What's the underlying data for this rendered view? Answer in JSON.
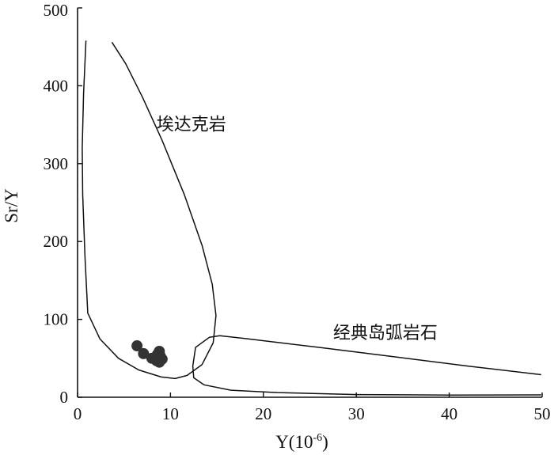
{
  "chart_data": {
    "type": "scatter",
    "title": "",
    "xlabel_main": "Y(10",
    "xlabel_exp": "-6",
    "xlabel_close": ")",
    "ylabel": "Sr/Y",
    "xlim": [
      0,
      50
    ],
    "ylim": [
      0,
      500
    ],
    "xticks": [
      "0",
      "10",
      "20",
      "30",
      "40",
      "50"
    ],
    "yticks": [
      "0",
      "100",
      "200",
      "300",
      "400",
      "500"
    ],
    "grid": false,
    "point_color": "#333333",
    "regions": [
      {
        "label": "埃达克岩",
        "label_anchor": [
          8.5,
          343
        ],
        "outline": [
          [
            0.9,
            458
          ],
          [
            0.65,
            390
          ],
          [
            0.5,
            320
          ],
          [
            0.55,
            260
          ],
          [
            0.8,
            180
          ],
          [
            1.1,
            108
          ],
          [
            2.4,
            75
          ],
          [
            4.4,
            50
          ],
          [
            6.6,
            35
          ],
          [
            9.0,
            26
          ],
          [
            10.5,
            24
          ],
          [
            11.8,
            28
          ],
          [
            13.4,
            42
          ],
          [
            14.6,
            70
          ],
          [
            14.9,
            105
          ],
          [
            14.5,
            145
          ],
          [
            13.4,
            195
          ],
          [
            11.5,
            260
          ],
          [
            9.1,
            330
          ],
          [
            7.0,
            385
          ],
          [
            5.2,
            428
          ],
          [
            3.7,
            456
          ]
        ]
      },
      {
        "label": "经典岛弧岩石",
        "label_anchor": [
          27.5,
          75
        ],
        "outline": [
          [
            49.9,
            29
          ],
          [
            42,
            40
          ],
          [
            34,
            52
          ],
          [
            26,
            64
          ],
          [
            18,
            75.5
          ],
          [
            15.3,
            79
          ],
          [
            14.2,
            77
          ],
          [
            12.7,
            64
          ],
          [
            12.4,
            40
          ],
          [
            12.5,
            25
          ],
          [
            13.6,
            16
          ],
          [
            16.5,
            9
          ],
          [
            21.5,
            6
          ],
          [
            30,
            3.5
          ],
          [
            40,
            2.8
          ],
          [
            49.9,
            3
          ]
        ]
      }
    ],
    "points": [
      {
        "x": 6.4,
        "y": 66
      },
      {
        "x": 7.1,
        "y": 56
      },
      {
        "x": 8.0,
        "y": 50
      },
      {
        "x": 8.5,
        "y": 47
      },
      {
        "x": 8.8,
        "y": 59
      },
      {
        "x": 8.9,
        "y": 53
      },
      {
        "x": 8.6,
        "y": 55
      },
      {
        "x": 9.1,
        "y": 49
      },
      {
        "x": 8.8,
        "y": 45
      }
    ]
  }
}
